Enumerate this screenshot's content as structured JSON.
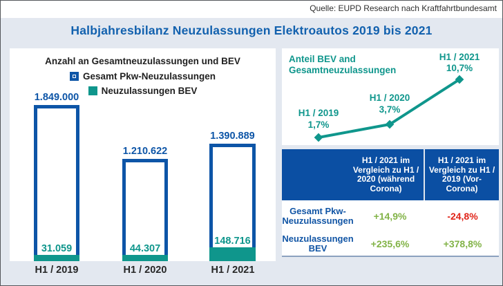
{
  "source_line": "Quelle: EUPD Research nach Kraftfahrtbundesamt",
  "main_title": "Halbjahresbilanz Neuzulassungen Elektroautos 2019 bis 2021",
  "colors": {
    "page_bg": "#e3e8f0",
    "panel_bg": "#ffffff",
    "blue": "#0d55a7",
    "title_blue": "#1261ae",
    "teal": "#0f968c",
    "table_header_bg": "#0b4fa3",
    "green": "#82b347",
    "red": "#e02318",
    "text_dark": "#262626",
    "table_bottom_line": "#8ba1bf"
  },
  "chart_data": [
    {
      "type": "bar",
      "title": "Anzahl an Gesamtneuzulassungen und BEV",
      "categories": [
        "H1 / 2019",
        "H1 / 2020",
        "H1 / 2021"
      ],
      "series": [
        {
          "name": "Gesamt Pkw-Neuzulassungen",
          "style": "outlined-blue",
          "values": [
            1849000,
            1210622,
            1390889
          ],
          "labels": [
            "1.849.000",
            "1.210.622",
            "1.390.889"
          ]
        },
        {
          "name": "Neuzulassungen BEV",
          "style": "filled-teal",
          "values": [
            31059,
            44307,
            148716
          ],
          "labels": [
            "31.059",
            "44.307",
            "148.716"
          ]
        }
      ],
      "legend_position": "top",
      "ylim": [
        0,
        1900000
      ],
      "grid": false
    },
    {
      "type": "line",
      "title": "Anteil BEV and\nGesamtneuzulassungen",
      "x": [
        "H1 / 2019",
        "H1 / 2020",
        "H1 / 2021"
      ],
      "values": [
        1.7,
        3.7,
        10.7
      ],
      "labels": [
        "1,7%",
        "3,7%",
        "10,7%"
      ],
      "marker": "diamond",
      "line_color": "#0f968c",
      "grid": false
    },
    {
      "type": "table",
      "columns": [
        "",
        "H1 / 2021 im Vergleich zu H1 / 2020 (während Corona)",
        "H1 / 2021 im Vergleich zu H1 / 2019 (Vor-Corona)"
      ],
      "rows": [
        {
          "label": "Gesamt Pkw-Neuzulassungen",
          "values": [
            "+14,9%",
            "-24,8%"
          ],
          "value_colors": [
            "green",
            "red"
          ]
        },
        {
          "label": "Neuzulassungen BEV",
          "values": [
            "+235,6%",
            "+378,8%"
          ],
          "value_colors": [
            "green",
            "green"
          ]
        }
      ]
    }
  ]
}
